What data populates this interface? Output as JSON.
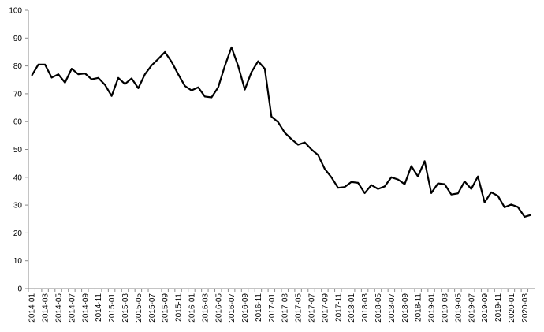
{
  "chart_data": {
    "type": "line",
    "categories": [
      "2014-01",
      null,
      "2014-03",
      null,
      "2014-05",
      null,
      "2014-07",
      null,
      "2014-09",
      null,
      "2014-11",
      null,
      "2015-01",
      null,
      "2015-03",
      null,
      "2015-05",
      null,
      "2015-07",
      null,
      "2015-09",
      null,
      "2015-11",
      null,
      "2016-01",
      null,
      "2016-03",
      null,
      "2016-05",
      null,
      "2016-07",
      null,
      "2016-09",
      null,
      "2016-11",
      null,
      "2017-01",
      null,
      "2017-03",
      null,
      "2017-05",
      null,
      "2017-07",
      null,
      "2017-09",
      null,
      "2017-11",
      null,
      "2018-01",
      null,
      "2018-03",
      null,
      "2018-05",
      null,
      "2018-07",
      null,
      "2018-09",
      null,
      "2018-11",
      null,
      "2019-01",
      null,
      "2019-03",
      null,
      "2019-05",
      null,
      "2019-07",
      null,
      "2019-09",
      null,
      "2019-11",
      null,
      "2020-01",
      null,
      "2020-03",
      null
    ],
    "values": [
      76.5,
      80.5,
      80.5,
      75.8,
      77,
      74,
      79,
      77,
      77.3,
      75.2,
      75.7,
      73.2,
      69.2,
      75.7,
      73.5,
      75.5,
      72,
      77,
      80.2,
      82.5,
      85,
      81.5,
      77,
      72.8,
      71.2,
      72.3,
      69,
      68.7,
      72.3,
      80,
      86.7,
      80,
      71.5,
      77.8,
      81.7,
      79,
      61.8,
      59.8,
      56,
      53.7,
      51.7,
      52.5,
      50,
      48,
      43,
      40,
      36.2,
      36.5,
      38.3,
      38,
      34.3,
      37.2,
      35.8,
      36.7,
      40,
      39.2,
      37.5,
      44,
      40.3,
      45.8,
      34.3,
      37.8,
      37.5,
      33.8,
      34.2,
      38.5,
      35.8,
      40.3,
      31,
      34.6,
      33.3,
      29.2,
      30.2,
      29.3,
      25.8,
      26.5
    ],
    "color": "#000000",
    "ylim": [
      0,
      100
    ],
    "yticks": [
      0,
      10,
      20,
      30,
      40,
      50,
      60,
      70,
      80,
      90,
      100
    ],
    "grid": false
  }
}
